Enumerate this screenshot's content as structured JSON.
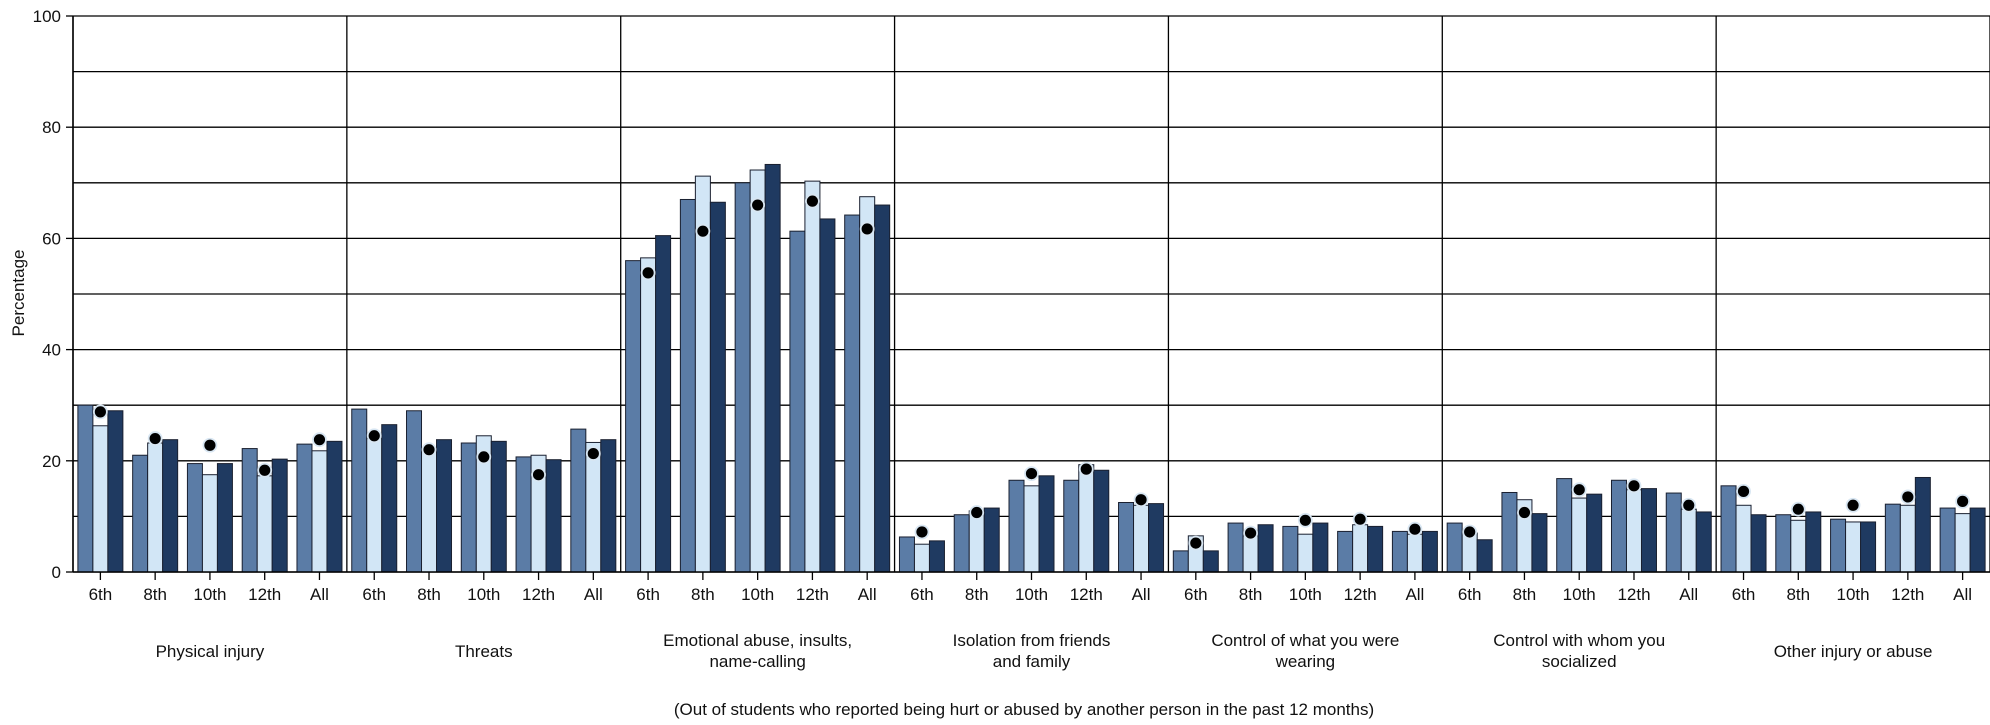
{
  "chart_data": {
    "type": "bar",
    "ylabel": "Percentage",
    "ylim": [
      0,
      100
    ],
    "yticks": [
      0,
      20,
      40,
      60,
      80,
      100
    ],
    "grid": true,
    "footnote": "(Out of students who reported being hurt or abused by another person in the past 12 months)",
    "colors": {
      "series1": "#5b7ca6",
      "series2": "#d2e6f6",
      "series3": "#1f3a61",
      "marker": "#000000",
      "marker_edge": "#d8e6f2",
      "grid": "#000000"
    },
    "subcategories": [
      "6th",
      "8th",
      "10th",
      "12th",
      "All"
    ],
    "groups": [
      {
        "label_lines": [
          "Physical injury"
        ],
        "values": [
          [
            30.0,
            26.3,
            29.0
          ],
          [
            21.0,
            23.2,
            23.8
          ],
          [
            19.5,
            17.5,
            19.5
          ],
          [
            22.2,
            17.3,
            20.3
          ],
          [
            23.0,
            21.8,
            23.5
          ]
        ],
        "markers": [
          28.8,
          24.0,
          22.8,
          18.3,
          23.8
        ]
      },
      {
        "label_lines": [
          "Threats"
        ],
        "values": [
          [
            29.3,
            24.0,
            26.5
          ],
          [
            29.0,
            22.3,
            23.8
          ],
          [
            23.2,
            24.5,
            23.5
          ],
          [
            20.7,
            21.0,
            20.2
          ],
          [
            25.7,
            23.3,
            23.8
          ]
        ],
        "markers": [
          24.5,
          22.0,
          20.7,
          17.5,
          21.3
        ]
      },
      {
        "label_lines": [
          "Emotional abuse, insults,",
          "name-calling"
        ],
        "values": [
          [
            56.0,
            56.5,
            60.5
          ],
          [
            67.0,
            71.2,
            66.5
          ],
          [
            70.0,
            72.3,
            73.3
          ],
          [
            61.3,
            70.3,
            63.5
          ],
          [
            64.2,
            67.5,
            66.0
          ]
        ],
        "markers": [
          53.8,
          61.3,
          66.0,
          66.7,
          61.7
        ]
      },
      {
        "label_lines": [
          "Isolation from friends",
          "and family"
        ],
        "values": [
          [
            6.3,
            5.0,
            5.6
          ],
          [
            10.3,
            11.0,
            11.5
          ],
          [
            16.5,
            15.5,
            17.3
          ],
          [
            16.5,
            19.3,
            18.3
          ],
          [
            12.5,
            12.0,
            12.3
          ]
        ],
        "markers": [
          7.2,
          10.7,
          17.7,
          18.5,
          13.0
        ]
      },
      {
        "label_lines": [
          "Control of what you were",
          "wearing"
        ],
        "values": [
          [
            3.8,
            6.5,
            3.8
          ],
          [
            8.8,
            6.5,
            8.5
          ],
          [
            8.2,
            6.8,
            8.8
          ],
          [
            7.3,
            8.5,
            8.2
          ],
          [
            7.3,
            6.8,
            7.3
          ]
        ],
        "markers": [
          5.2,
          7.0,
          9.3,
          9.5,
          7.7
        ]
      },
      {
        "label_lines": [
          "Control with whom you",
          "socialized"
        ],
        "values": [
          [
            8.8,
            7.0,
            5.8
          ],
          [
            14.3,
            13.0,
            10.5
          ],
          [
            16.8,
            13.3,
            14.0
          ],
          [
            16.5,
            14.8,
            15.0
          ],
          [
            14.2,
            11.3,
            10.8
          ]
        ],
        "markers": [
          7.2,
          10.7,
          14.8,
          15.5,
          12.0
        ]
      },
      {
        "label_lines": [
          "Other injury or abuse"
        ],
        "values": [
          [
            15.5,
            12.0,
            10.3
          ],
          [
            10.3,
            9.3,
            10.8
          ],
          [
            9.5,
            9.0,
            9.0
          ],
          [
            12.2,
            12.0,
            17.0
          ],
          [
            11.5,
            10.5,
            11.5
          ]
        ],
        "markers": [
          14.5,
          11.3,
          12.0,
          13.5,
          12.7
        ]
      }
    ]
  }
}
